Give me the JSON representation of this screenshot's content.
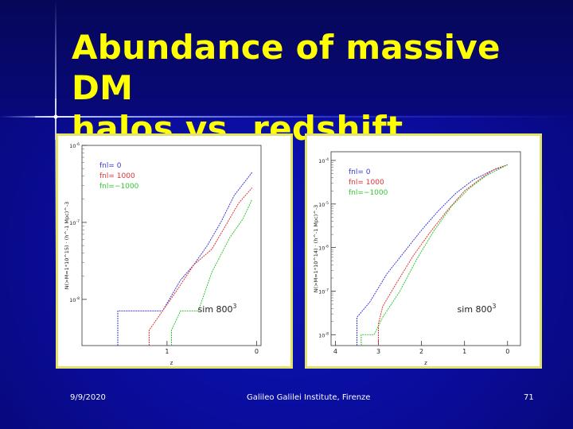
{
  "slide": {
    "title_line1": "Abundance of massive DM",
    "title_line2": "halos vs. redshift",
    "footer": {
      "date": "9/9/2020",
      "venue": "Galileo Galilei Institute, Firenze",
      "page": "71"
    },
    "colors": {
      "background": "#0a0c98",
      "title": "#ffff00",
      "panel_border": "#e3e36a",
      "fnl_0": "#3a3ad8",
      "fnl_1000": "#e23232",
      "fnl_minus_1000": "#32c832"
    }
  },
  "chart_data": [
    {
      "type": "line",
      "xlabel": "z",
      "ylabel": "N(>M=1*10^15) · (h^-1 Mpc)^-3",
      "x_ticks": [
        "1",
        "0"
      ],
      "y_ticks": [
        "10^-6",
        "10^-7",
        "10^-8"
      ],
      "xlim": [
        1.95,
        -0.05
      ],
      "y_scale": "log",
      "ylim_log10": [
        -8.6,
        -6.0
      ],
      "annotation": "sim 800^3",
      "legend": [
        "fnl= 0",
        "fnl= 1000",
        "fnl=−1000"
      ],
      "series": [
        {
          "name": "fnl= 0",
          "x": [
            1.55,
            1.05,
            0.85,
            0.7,
            0.55,
            0.4,
            0.25,
            0.05
          ],
          "y": [
            -8.15,
            -8.15,
            -7.75,
            -7.55,
            -7.3,
            -7.0,
            -6.65,
            -6.35
          ]
        },
        {
          "name": "fnl= 1000",
          "x": [
            1.2,
            1.05,
            0.9,
            0.7,
            0.5,
            0.35,
            0.2,
            0.05
          ],
          "y": [
            -8.4,
            -8.15,
            -7.9,
            -7.55,
            -7.35,
            -7.05,
            -6.75,
            -6.55
          ]
        },
        {
          "name": "fnl=−1000",
          "x": [
            0.95,
            0.85,
            0.65,
            0.5,
            0.3,
            0.15,
            0.05
          ],
          "y": [
            -8.4,
            -8.15,
            -8.15,
            -7.65,
            -7.2,
            -6.95,
            -6.7
          ]
        }
      ]
    },
    {
      "type": "line",
      "xlabel": "z",
      "ylabel": "N(>M=1*10^14) · (h^-1 Mpc)^-3",
      "x_ticks": [
        "4",
        "3",
        "2",
        "1",
        "0"
      ],
      "y_ticks": [
        "10^-4",
        "10^-5",
        "10^-6",
        "10^-7",
        "10^-8"
      ],
      "xlim": [
        4.1,
        -0.3
      ],
      "y_scale": "log",
      "ylim_log10": [
        -8.25,
        -3.8
      ],
      "annotation": "sim 800^3",
      "legend": [
        "fnl= 0",
        "fnl= 1000",
        "fnl=−1000"
      ],
      "series": [
        {
          "name": "fnl= 0",
          "x": [
            3.5,
            3.2,
            2.8,
            2.4,
            2.0,
            1.6,
            1.2,
            0.8,
            0.4,
            0.0
          ],
          "y": [
            -7.6,
            -7.25,
            -6.6,
            -6.1,
            -5.6,
            -5.15,
            -4.75,
            -4.45,
            -4.25,
            -4.1
          ]
        },
        {
          "name": "fnl= 1000",
          "x": [
            3.0,
            2.9,
            2.6,
            2.2,
            1.8,
            1.4,
            1.0,
            0.6,
            0.3,
            0.0
          ],
          "y": [
            -7.75,
            -7.35,
            -6.85,
            -6.2,
            -5.65,
            -5.15,
            -4.7,
            -4.4,
            -4.2,
            -4.1
          ]
        },
        {
          "name": "fnl=−1000",
          "x": [
            3.4,
            3.1,
            2.9,
            2.5,
            2.1,
            1.7,
            1.3,
            0.9,
            0.5,
            0.0
          ],
          "y": [
            -8.0,
            -8.0,
            -7.6,
            -7.0,
            -6.25,
            -5.6,
            -5.05,
            -4.65,
            -4.35,
            -4.1
          ]
        }
      ]
    }
  ]
}
